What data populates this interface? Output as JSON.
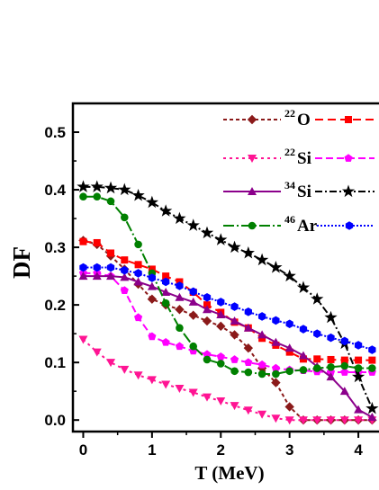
{
  "chart_data": {
    "type": "line",
    "xlabel": "T (MeV)",
    "ylabel": "DF",
    "xlim": [
      -0.15,
      4.3
    ],
    "ylim": [
      -0.02,
      0.55
    ],
    "x_ticks": [
      "0",
      "1",
      "2",
      "3",
      "4"
    ],
    "y_ticks": [
      "0.0",
      "0.1",
      "0.2",
      "0.3",
      "0.4",
      "0.5"
    ],
    "x_tick_values": [
      0,
      1,
      2,
      3,
      4
    ],
    "y_tick_values": [
      0.0,
      0.1,
      0.2,
      0.3,
      0.4,
      0.5
    ],
    "legend_position": "top-right",
    "legend": [
      {
        "mass": "22",
        "element": "O"
      },
      {
        "mass": "22",
        "element": "Si"
      },
      {
        "mass": "34",
        "element": "Si"
      },
      {
        "mass": "46",
        "element": "Ar"
      }
    ],
    "series": [
      {
        "nucleus": "22O-1",
        "color": "#8b1a1a",
        "marker": "diamond",
        "dash": "4,3",
        "x": [
          0,
          0.2,
          0.4,
          0.6,
          0.8,
          1.0,
          1.2,
          1.4,
          1.6,
          1.8,
          2.0,
          2.2,
          2.4,
          2.6,
          2.8,
          3.0,
          3.2,
          3.4,
          3.6,
          3.8,
          4.0,
          4.2
        ],
        "y": [
          0.312,
          0.305,
          0.285,
          0.262,
          0.236,
          0.21,
          0.2,
          0.192,
          0.182,
          0.172,
          0.163,
          0.148,
          0.125,
          0.09,
          0.065,
          0.023,
          0.0,
          0.0,
          0.0,
          0.0,
          0.0,
          0.0
        ]
      },
      {
        "nucleus": "22O-2",
        "color": "#ff0000",
        "marker": "square",
        "dash": "9,5",
        "x": [
          0,
          0.2,
          0.4,
          0.6,
          0.8,
          1.0,
          1.2,
          1.4,
          1.6,
          1.8,
          2.0,
          2.2,
          2.4,
          2.6,
          2.8,
          3.0,
          3.2,
          3.4,
          3.6,
          3.8,
          4.0,
          4.2
        ],
        "y": [
          0.31,
          0.308,
          0.29,
          0.278,
          0.27,
          0.262,
          0.25,
          0.24,
          0.222,
          0.2,
          0.187,
          0.17,
          0.16,
          0.142,
          0.13,
          0.118,
          0.106,
          0.106,
          0.105,
          0.104,
          0.104,
          0.104
        ]
      },
      {
        "nucleus": "22Si-1",
        "color": "#ff1493",
        "marker": "triangle-down",
        "dash": "3,4",
        "x": [
          0,
          0.2,
          0.4,
          0.6,
          0.8,
          1.0,
          1.2,
          1.4,
          1.6,
          1.8,
          2.0,
          2.2,
          2.4,
          2.6,
          2.8,
          3.0,
          3.2,
          3.4,
          3.6,
          3.8,
          4.0,
          4.2
        ],
        "y": [
          0.14,
          0.118,
          0.1,
          0.088,
          0.078,
          0.07,
          0.062,
          0.055,
          0.048,
          0.04,
          0.033,
          0.025,
          0.017,
          0.01,
          0.003,
          0.0,
          0.0,
          0.0,
          0.0,
          0.0,
          0.0,
          0.0
        ]
      },
      {
        "nucleus": "22Si-2",
        "color": "#ff00ff",
        "marker": "pentagon",
        "dash": "8,4",
        "x": [
          0,
          0.2,
          0.4,
          0.6,
          0.8,
          1.0,
          1.2,
          1.4,
          1.6,
          1.8,
          2.0,
          2.2,
          2.4,
          2.6,
          2.8,
          3.0,
          3.2,
          3.4,
          3.6,
          3.8,
          4.0,
          4.2
        ],
        "y": [
          0.255,
          0.255,
          0.25,
          0.225,
          0.178,
          0.145,
          0.135,
          0.128,
          0.12,
          0.114,
          0.11,
          0.105,
          0.1,
          0.096,
          0.09,
          0.087,
          0.086,
          0.084,
          0.083,
          0.083,
          0.083,
          0.083
        ]
      },
      {
        "nucleus": "34Si-1",
        "color": "#8b008b",
        "marker": "triangle-up",
        "dash": "",
        "x": [
          0,
          0.2,
          0.4,
          0.6,
          0.8,
          1.0,
          1.2,
          1.4,
          1.6,
          1.8,
          2.0,
          2.2,
          2.4,
          2.6,
          2.8,
          3.0,
          3.2,
          3.4,
          3.6,
          3.8,
          4.0,
          4.2
        ],
        "y": [
          0.25,
          0.25,
          0.25,
          0.248,
          0.24,
          0.232,
          0.222,
          0.213,
          0.205,
          0.192,
          0.183,
          0.172,
          0.16,
          0.148,
          0.135,
          0.125,
          0.112,
          0.093,
          0.075,
          0.05,
          0.018,
          0.005
        ]
      },
      {
        "nucleus": "34Si-2",
        "color": "#000000",
        "marker": "star",
        "dash": "8,3,2,3",
        "x": [
          0,
          0.2,
          0.4,
          0.6,
          0.8,
          1.0,
          1.2,
          1.4,
          1.6,
          1.8,
          2.0,
          2.2,
          2.4,
          2.6,
          2.8,
          3.0,
          3.2,
          3.4,
          3.6,
          3.8,
          4.0,
          4.2
        ],
        "y": [
          0.405,
          0.405,
          0.403,
          0.4,
          0.39,
          0.378,
          0.363,
          0.35,
          0.338,
          0.325,
          0.313,
          0.3,
          0.29,
          0.278,
          0.265,
          0.25,
          0.23,
          0.21,
          0.178,
          0.133,
          0.075,
          0.02
        ]
      },
      {
        "nucleus": "46Ar-1",
        "color": "#008000",
        "marker": "circle",
        "dash": "12,3,2,3",
        "x": [
          0,
          0.2,
          0.4,
          0.6,
          0.8,
          1.0,
          1.2,
          1.4,
          1.6,
          1.8,
          2.0,
          2.2,
          2.4,
          2.6,
          2.8,
          3.0,
          3.2,
          3.4,
          3.6,
          3.8,
          4.0,
          4.2
        ],
        "y": [
          0.388,
          0.388,
          0.38,
          0.352,
          0.305,
          0.255,
          0.203,
          0.16,
          0.128,
          0.105,
          0.098,
          0.085,
          0.083,
          0.08,
          0.08,
          0.085,
          0.087,
          0.09,
          0.092,
          0.094,
          0.09,
          0.09
        ]
      },
      {
        "nucleus": "46Ar-2",
        "color": "#0000ff",
        "marker": "hexagon",
        "dash": "2,2",
        "x": [
          0,
          0.2,
          0.4,
          0.6,
          0.8,
          1.0,
          1.2,
          1.4,
          1.6,
          1.8,
          2.0,
          2.2,
          2.4,
          2.6,
          2.8,
          3.0,
          3.2,
          3.4,
          3.6,
          3.8,
          4.0,
          4.2
        ],
        "y": [
          0.265,
          0.265,
          0.265,
          0.26,
          0.255,
          0.247,
          0.24,
          0.233,
          0.223,
          0.213,
          0.205,
          0.197,
          0.188,
          0.18,
          0.173,
          0.167,
          0.158,
          0.15,
          0.143,
          0.137,
          0.13,
          0.122
        ]
      }
    ]
  }
}
